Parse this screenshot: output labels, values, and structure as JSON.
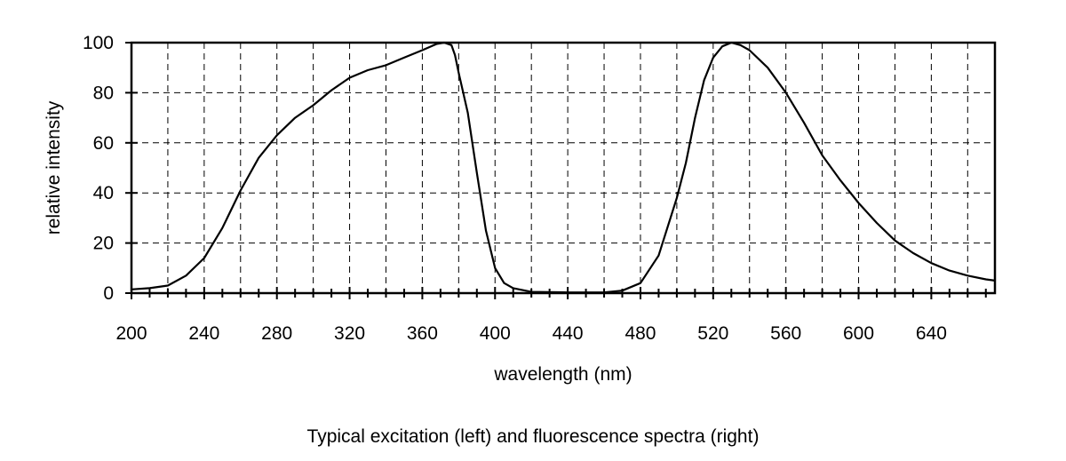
{
  "chart_data": {
    "type": "line",
    "title": "",
    "caption": "Typical excitation (left) and fluorescence spectra (right)",
    "xlabel": "wavelength (nm)",
    "ylabel": "relative intensity",
    "xlim": [
      200,
      675
    ],
    "ylim": [
      0,
      100
    ],
    "x_ticks": [
      200,
      240,
      280,
      320,
      360,
      400,
      440,
      480,
      520,
      560,
      600,
      640
    ],
    "x_minor_step": 10,
    "x_grid_step": 20,
    "y_ticks": [
      0,
      20,
      40,
      60,
      80,
      100
    ],
    "grid": true,
    "grid_style": "dashed",
    "line_color": "#000000",
    "series": [
      {
        "x": [
          200,
          210,
          220,
          230,
          240,
          250,
          260,
          270,
          280,
          290,
          300,
          310,
          320,
          330,
          340,
          350,
          360,
          368,
          372,
          376,
          378,
          380,
          385,
          390,
          395,
          400,
          405,
          410,
          420,
          440,
          460,
          470,
          480,
          490,
          500,
          505,
          510,
          515,
          520,
          525,
          530,
          535,
          540,
          550,
          560,
          570,
          580,
          590,
          600,
          610,
          620,
          630,
          640,
          650,
          660,
          670,
          675
        ],
        "y": [
          1.5,
          2,
          3,
          7,
          14,
          26,
          41,
          54,
          63,
          70,
          75,
          81,
          86,
          89,
          91,
          94,
          97,
          99.5,
          100,
          99,
          95,
          88,
          72,
          48,
          25,
          10,
          4,
          2,
          0.5,
          0.3,
          0.3,
          1,
          4,
          15,
          38,
          52,
          70,
          85,
          94,
          98.5,
          100,
          99,
          97,
          90,
          80,
          68,
          55,
          45,
          36,
          28,
          21,
          16,
          12,
          9,
          7,
          5.5,
          5
        ]
      }
    ]
  }
}
